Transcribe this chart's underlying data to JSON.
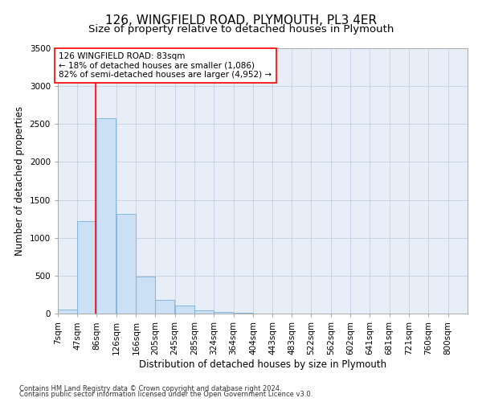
{
  "title": "126, WINGFIELD ROAD, PLYMOUTH, PL3 4ER",
  "subtitle": "Size of property relative to detached houses in Plymouth",
  "xlabel": "Distribution of detached houses by size in Plymouth",
  "ylabel": "Number of detached properties",
  "footer1": "Contains HM Land Registry data © Crown copyright and database right 2024.",
  "footer2": "Contains public sector information licensed under the Open Government Licence v3.0.",
  "annotation_line1": "126 WINGFIELD ROAD: 83sqm",
  "annotation_line2": "← 18% of detached houses are smaller (1,086)",
  "annotation_line3": "82% of semi-detached houses are larger (4,952) →",
  "bar_color": "#cce0f5",
  "bar_edge_color": "#7ab0d8",
  "red_line_x": 83,
  "ylim": [
    0,
    3500
  ],
  "bins": [
    7,
    47,
    86,
    126,
    166,
    205,
    245,
    285,
    324,
    364,
    404,
    443,
    483,
    522,
    562,
    602,
    641,
    681,
    721,
    760,
    800
  ],
  "counts": [
    50,
    1220,
    2580,
    1310,
    490,
    185,
    105,
    45,
    20,
    10,
    5,
    5,
    2,
    1,
    1,
    1,
    0,
    0,
    0,
    0
  ],
  "bg_color": "#ffffff",
  "plot_bg_color": "#e8eef8",
  "grid_color": "#c8d4e8",
  "title_fontsize": 11,
  "subtitle_fontsize": 9.5,
  "axis_label_fontsize": 8.5,
  "tick_fontsize": 7.5,
  "footer_fontsize": 6,
  "annotation_fontsize": 7.5
}
